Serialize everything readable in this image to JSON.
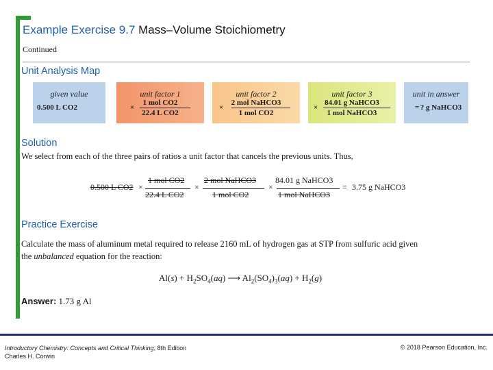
{
  "title": {
    "main": "Example Exercise 9.7",
    "sub": "Mass–Volume Stoichiometry"
  },
  "continued": "Continued",
  "unit_map": {
    "heading": "Unit Analysis Map",
    "colors": {
      "given": "#bcd2ea",
      "factor1": "#f2946a",
      "factor2": "#f8c58a",
      "factor3": "#dbe57c",
      "answer": "#bcd2ea"
    },
    "given": {
      "label": "given value",
      "value": "0.500 L CO2"
    },
    "factor1": {
      "label": "unit factor 1",
      "num": "1 mol CO2",
      "den": "22.4 L CO2"
    },
    "factor2": {
      "label": "unit factor 2",
      "num": "2 mol NaHCO3",
      "den": "1 mol CO2"
    },
    "factor3": {
      "label": "unit factor 3",
      "num": "84.01 g NaHCO3",
      "den": "1 mol NaHCO3"
    },
    "answer": {
      "label": "unit in answer",
      "value": "? g NaHCO3"
    },
    "op_times": "×",
    "op_equals": "="
  },
  "solution": {
    "heading": "Solution",
    "text": "We select from each of the three pairs of ratios a unit factor that cancels the previous units. Thus,",
    "calc": {
      "given": "0.500 L CO2",
      "f1_num": "1 mol CO2",
      "f1_den": "22.4 L CO2",
      "f2_num": "2 mol NaHCO3",
      "f2_den": "1 mol CO2",
      "f3_num": "84.01 g NaHCO3",
      "f3_den": "1 mol NaHCO3",
      "result": "3.75 g NaHCO3",
      "times": "×",
      "equals": "="
    }
  },
  "practice": {
    "heading": "Practice Exercise",
    "text_line1": "Calculate the mass of aluminum metal required to release 2160 mL of hydrogen gas at STP from sulfuric acid given",
    "text_line2_pre": "the ",
    "text_line2_em": "unbalanced",
    "text_line2_post": " equation for the reaction:",
    "reaction": "Al(s) + H2SO4(aq) ⟶ Al2(SO4)3(aq) + H2(g)",
    "answer_label": "Answer:",
    "answer_value": "1.73 g Al"
  },
  "footer": {
    "book": "Introductory Chemistry: Concepts and Critical Thinking",
    "edition": ", 8th Edition",
    "author": "Charles H. Corwin",
    "copyright": "© 2018 Pearson Education, Inc."
  }
}
